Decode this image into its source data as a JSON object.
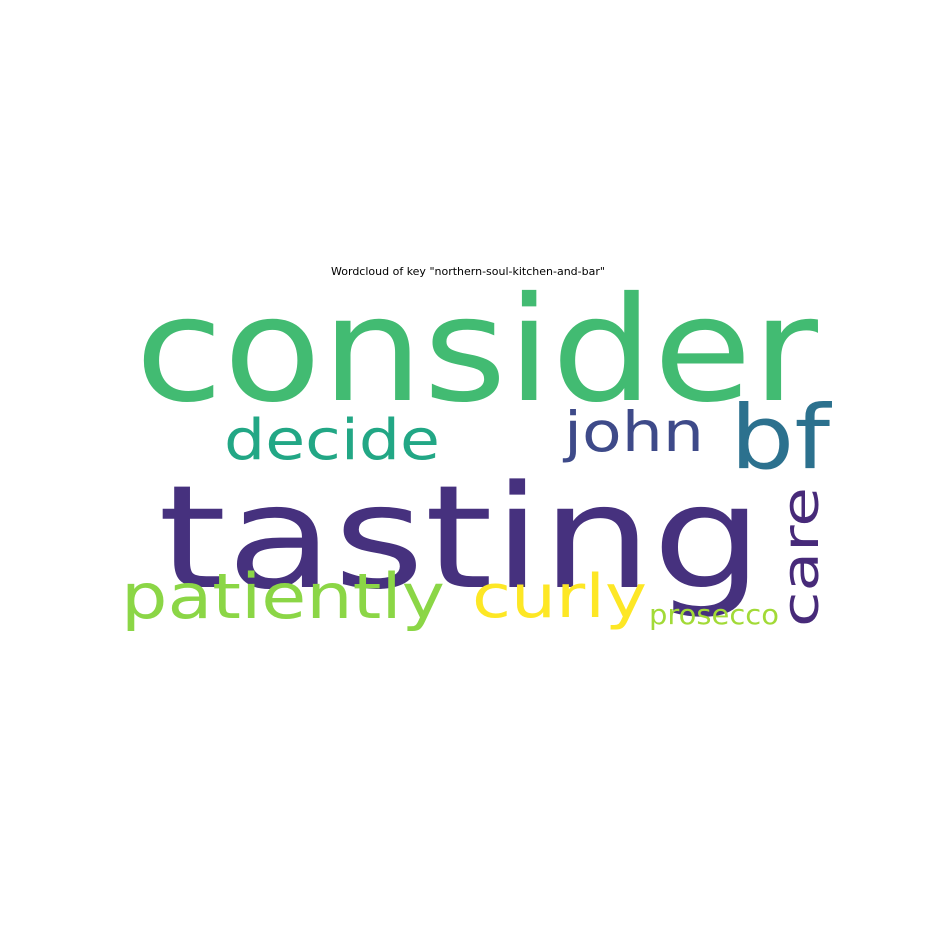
{
  "title": "Wordcloud of key \"northern-soul-kitchen-and-bar\"",
  "words": [
    {
      "text": "consider",
      "color": "#42bb72"
    },
    {
      "text": "tasting",
      "color": "#46317e"
    },
    {
      "text": "decide",
      "color": "#22a785"
    },
    {
      "text": "john",
      "color": "#3e4a89"
    },
    {
      "text": "bf",
      "color": "#2c718e"
    },
    {
      "text": "care",
      "color": "#472a79"
    },
    {
      "text": "patiently",
      "color": "#8bd646"
    },
    {
      "text": "curly",
      "color": "#fde725"
    },
    {
      "text": "prosecco",
      "color": "#a2da37"
    }
  ]
}
